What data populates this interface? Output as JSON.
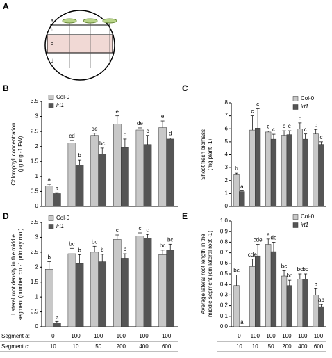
{
  "diagram": {
    "panel": "A",
    "labels": [
      "a",
      "b",
      "c",
      "d"
    ]
  },
  "segment_labels": [
    "Segment a:",
    "Segment c:"
  ],
  "chart_data": [
    {
      "type": "bar",
      "panel": "B",
      "ylabel": [
        "Chlorophyll concentration",
        "(µg mg -1 FW)"
      ],
      "ylim": [
        0,
        3.5
      ],
      "yticks": [
        0,
        0.5,
        1,
        1.5,
        2,
        2.5,
        3,
        3.5
      ],
      "legend": "top-left",
      "series": [
        {
          "name": "Col-0",
          "color": "#c8c8c8",
          "values": [
            0.68,
            2.12,
            2.37,
            2.75,
            2.55,
            2.63
          ],
          "errors": [
            0.06,
            0.08,
            0.07,
            0.27,
            0.07,
            0.22
          ],
          "letters": [
            "a",
            "cd",
            "de",
            "e",
            "de",
            "e"
          ]
        },
        {
          "name": "irt1",
          "color": "#555555",
          "values": [
            0.43,
            1.38,
            1.75,
            1.97,
            2.07,
            2.25
          ],
          "errors": [
            0.03,
            0.17,
            0.2,
            0.28,
            0.3,
            0.03
          ],
          "letters": [
            "a",
            "b",
            "bc",
            "c",
            "c",
            "d"
          ]
        }
      ]
    },
    {
      "type": "bar",
      "panel": "C",
      "ylabel": [
        "Shoot fresh biomass",
        "(mg plant -1)"
      ],
      "ylim": [
        0,
        8
      ],
      "yticks": [
        0,
        1,
        2,
        3,
        4,
        5,
        6,
        7,
        8
      ],
      "legend": "top-right",
      "series": [
        {
          "name": "Col-0",
          "color": "#c8c8c8",
          "values": [
            2.45,
            5.9,
            5.75,
            5.5,
            6.0,
            5.6
          ],
          "errors": [
            0.12,
            1.1,
            0.08,
            0.35,
            0.45,
            0.35
          ],
          "letters": [
            "b",
            "c",
            "c",
            "c",
            "c",
            "c"
          ]
        },
        {
          "name": "irt1",
          "color": "#555555",
          "values": [
            1.15,
            6.05,
            5.2,
            5.55,
            5.2,
            4.8
          ],
          "errors": [
            0.05,
            1.5,
            0.38,
            0.3,
            0.4,
            0.2
          ],
          "letters": [
            "a",
            "c",
            "c",
            "c",
            "c",
            "c"
          ]
        }
      ]
    },
    {
      "type": "bar",
      "panel": "D",
      "ylabel": [
        "Lateral root density in the middle",
        "segment (number cm -1 primary root)"
      ],
      "ylim": [
        0,
        3.5
      ],
      "yticks": [
        0,
        0.5,
        1,
        1.5,
        2,
        2.5,
        3,
        3.5
      ],
      "legend": "top-left",
      "segment_a": [
        0,
        100,
        100,
        100,
        100,
        100
      ],
      "segment_c": [
        10,
        10,
        50,
        200,
        400,
        600
      ],
      "series": [
        {
          "name": "Col-0",
          "color": "#c8c8c8",
          "values": [
            1.93,
            2.45,
            2.5,
            2.93,
            3.05,
            2.42
          ],
          "errors": [
            0.25,
            0.18,
            0.2,
            0.15,
            0.1,
            0.15
          ],
          "letters": [
            "b",
            "bc",
            "bc",
            "c",
            "c",
            "bc"
          ]
        },
        {
          "name": "irt1",
          "color": "#555555",
          "values": [
            0.13,
            2.12,
            2.18,
            2.3,
            2.98,
            2.57
          ],
          "errors": [
            0.05,
            0.3,
            0.25,
            0.15,
            0.12,
            0.2
          ],
          "letters": [
            "a",
            "b",
            "b",
            "b",
            "c",
            "bc"
          ]
        }
      ]
    },
    {
      "type": "bar",
      "panel": "E",
      "ylabel": [
        "Average lateral root length in the",
        "middle segment (cm lateral root -1)"
      ],
      "ylim": [
        0,
        1
      ],
      "yticks": [
        {
          "value": 0,
          "label": "0.0"
        },
        0.1,
        0.2,
        0.3,
        0.4,
        0.5,
        0.6,
        0.7,
        0.8,
        0.9,
        {
          "value": 1,
          "label": "1.0"
        }
      ],
      "legend": "top-right",
      "segment_a": [
        0,
        100,
        100,
        100,
        100,
        100
      ],
      "segment_c": [
        10,
        10,
        50,
        200,
        400,
        600
      ],
      "series": [
        {
          "name": "Col-0",
          "color": "#c8c8c8",
          "values": [
            0.39,
            0.57,
            0.78,
            0.48,
            0.45,
            0.3
          ],
          "errors": [
            0.1,
            0.07,
            0.05,
            0.05,
            0.05,
            0.06
          ],
          "letters": [
            "bc",
            "cde",
            "e",
            "bc",
            "bc",
            "b"
          ]
        },
        {
          "name": "irt1",
          "color": "#555555",
          "values": [
            0,
            0.67,
            0.71,
            0.39,
            0.45,
            0.19
          ],
          "errors": [
            0,
            0.11,
            0.09,
            0.05,
            0.05,
            0.02
          ],
          "letters": [
            "a",
            "cde",
            "de",
            "bc",
            "bc",
            "ab"
          ]
        }
      ]
    }
  ]
}
